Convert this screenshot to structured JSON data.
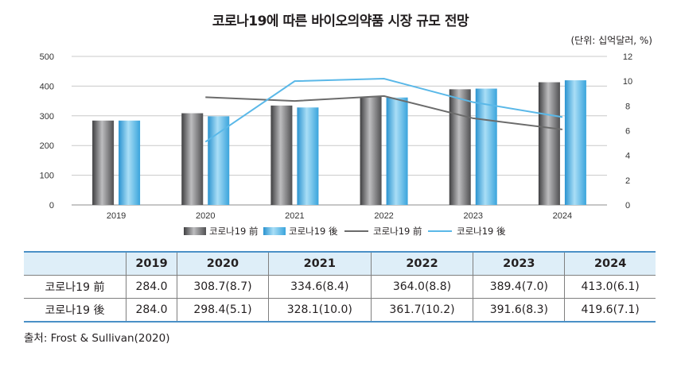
{
  "chart_data": {
    "type": "bar",
    "title": "코로나19에 따른 바이오의약품 시장 규모 전망",
    "unit_label": "(단위: 십억달러, %)",
    "categories": [
      "2019",
      "2020",
      "2021",
      "2022",
      "2023",
      "2024"
    ],
    "y_left": {
      "range": [
        0,
        500
      ],
      "ticks": [
        "0",
        "100",
        "200",
        "300",
        "400",
        "500"
      ]
    },
    "y_right": {
      "range": [
        0,
        12
      ],
      "ticks": [
        "0",
        "2",
        "4",
        "6",
        "8",
        "10",
        "12"
      ]
    },
    "bar_series": [
      {
        "name": "코로나19 前",
        "values": [
          284.0,
          308.7,
          334.6,
          364.0,
          389.4,
          413.0
        ],
        "color": "#6e6e70"
      },
      {
        "name": "코로나19 後",
        "values": [
          284.0,
          298.4,
          328.1,
          361.7,
          391.6,
          419.6
        ],
        "color": "#4fb3e6"
      }
    ],
    "line_series": [
      {
        "name": "코로나19 前",
        "values": [
          null,
          8.7,
          8.4,
          8.8,
          7.0,
          6.1
        ],
        "color": "#6b6b6b"
      },
      {
        "name": "코로나19 後",
        "values": [
          null,
          5.1,
          10.0,
          10.2,
          8.3,
          7.1
        ],
        "color": "#5ab8e8"
      }
    ],
    "legend": [
      "코로나19 前",
      "코로나19 後",
      "코로나19 前",
      "코로나19 後"
    ],
    "grid": true
  },
  "table": {
    "header": [
      "",
      "2019",
      "2020",
      "2021",
      "2022",
      "2023",
      "2024"
    ],
    "rows": [
      {
        "label": "코로나19 前",
        "cells": [
          "284.0",
          "308.7(8.7)",
          "334.6(8.4)",
          "364.0(8.8)",
          "389.4(7.0)",
          "413.0(6.1)"
        ]
      },
      {
        "label": "코로나19 後",
        "cells": [
          "284.0",
          "298.4(5.1)",
          "328.1(10.0)",
          "361.7(10.2)",
          "391.6(8.3)",
          "419.6(7.1)"
        ]
      }
    ]
  },
  "source": "출처: Frost & Sullivan(2020)"
}
